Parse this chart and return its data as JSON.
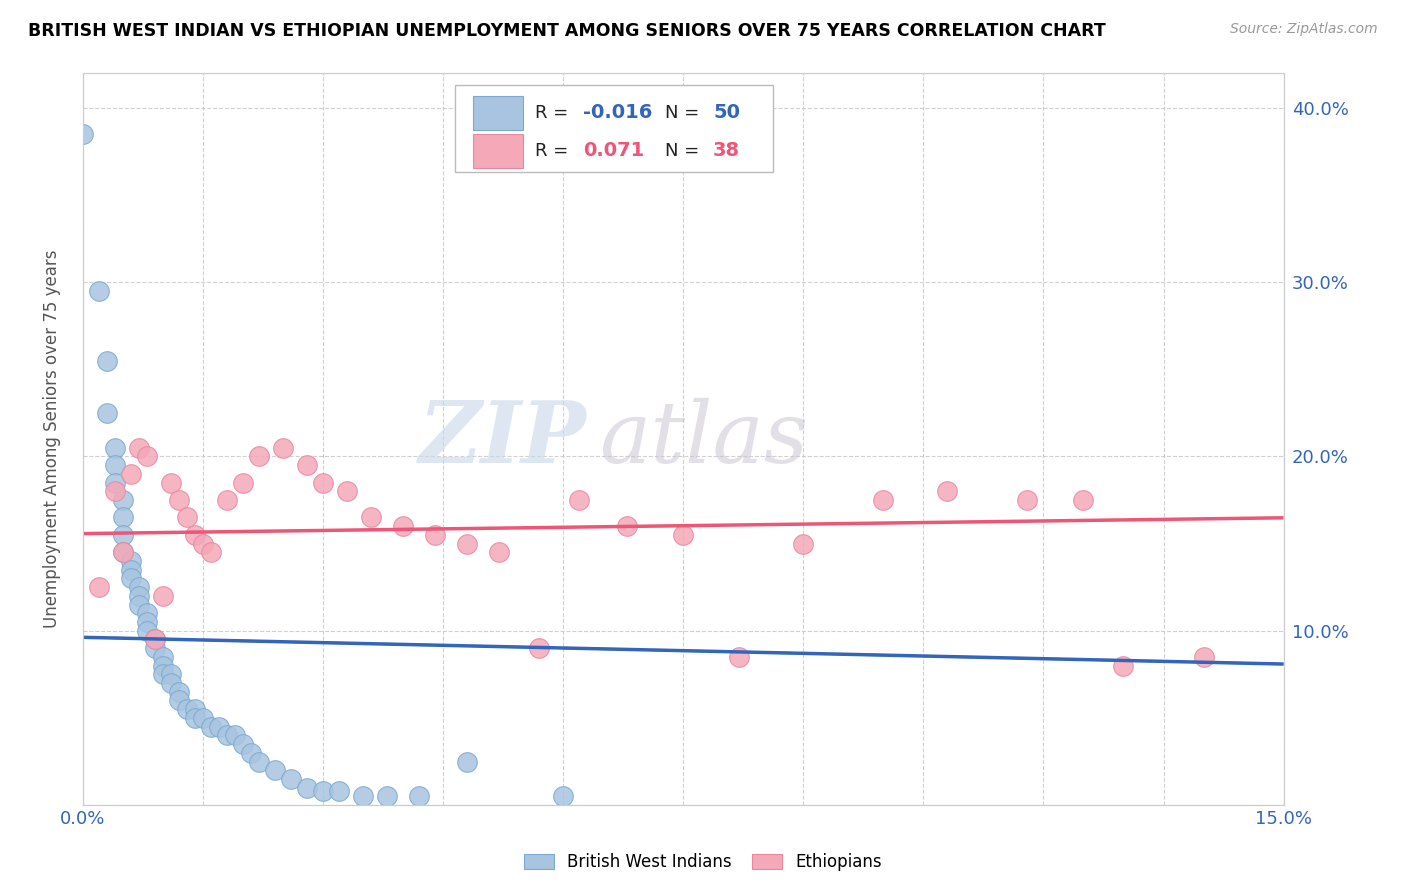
{
  "title": "BRITISH WEST INDIAN VS ETHIOPIAN UNEMPLOYMENT AMONG SENIORS OVER 75 YEARS CORRELATION CHART",
  "source": "Source: ZipAtlas.com",
  "ylabel": "Unemployment Among Seniors over 75 years",
  "xlim": [
    0.0,
    0.15
  ],
  "ylim": [
    0.0,
    0.42
  ],
  "blue_R": "-0.016",
  "blue_N": "50",
  "pink_R": "0.071",
  "pink_N": "38",
  "blue_color": "#A8C4E0",
  "pink_color": "#F4A8B8",
  "blue_edge_color": "#7AAAD0",
  "pink_edge_color": "#E888A0",
  "blue_line_color": "#3366BB",
  "pink_line_color": "#EE5577",
  "blue_dash_color": "#88AADD",
  "watermark_zip": "ZIP",
  "watermark_atlas": "atlas",
  "blue_x": [
    0.0,
    0.002,
    0.003,
    0.003,
    0.004,
    0.004,
    0.004,
    0.005,
    0.005,
    0.005,
    0.005,
    0.006,
    0.006,
    0.006,
    0.007,
    0.007,
    0.007,
    0.008,
    0.008,
    0.008,
    0.009,
    0.009,
    0.01,
    0.01,
    0.01,
    0.011,
    0.011,
    0.012,
    0.012,
    0.013,
    0.014,
    0.014,
    0.015,
    0.016,
    0.017,
    0.018,
    0.019,
    0.02,
    0.021,
    0.022,
    0.024,
    0.026,
    0.028,
    0.03,
    0.032,
    0.035,
    0.038,
    0.042,
    0.048,
    0.06
  ],
  "blue_y": [
    0.385,
    0.295,
    0.255,
    0.225,
    0.205,
    0.195,
    0.185,
    0.175,
    0.165,
    0.155,
    0.145,
    0.14,
    0.135,
    0.13,
    0.125,
    0.12,
    0.115,
    0.11,
    0.105,
    0.1,
    0.095,
    0.09,
    0.085,
    0.08,
    0.075,
    0.075,
    0.07,
    0.065,
    0.06,
    0.055,
    0.055,
    0.05,
    0.05,
    0.045,
    0.045,
    0.04,
    0.04,
    0.035,
    0.03,
    0.025,
    0.02,
    0.015,
    0.01,
    0.008,
    0.008,
    0.005,
    0.005,
    0.005,
    0.025,
    0.005
  ],
  "pink_x": [
    0.002,
    0.004,
    0.005,
    0.006,
    0.007,
    0.008,
    0.009,
    0.01,
    0.011,
    0.012,
    0.013,
    0.014,
    0.015,
    0.016,
    0.018,
    0.02,
    0.022,
    0.025,
    0.028,
    0.03,
    0.033,
    0.036,
    0.04,
    0.044,
    0.048,
    0.052,
    0.057,
    0.062,
    0.068,
    0.075,
    0.082,
    0.09,
    0.1,
    0.108,
    0.118,
    0.125,
    0.13,
    0.14
  ],
  "pink_y": [
    0.125,
    0.18,
    0.145,
    0.19,
    0.205,
    0.2,
    0.095,
    0.12,
    0.185,
    0.175,
    0.165,
    0.155,
    0.15,
    0.145,
    0.175,
    0.185,
    0.2,
    0.205,
    0.195,
    0.185,
    0.18,
    0.165,
    0.16,
    0.155,
    0.15,
    0.145,
    0.09,
    0.175,
    0.16,
    0.155,
    0.085,
    0.15,
    0.175,
    0.18,
    0.175,
    0.175,
    0.08,
    0.085
  ]
}
